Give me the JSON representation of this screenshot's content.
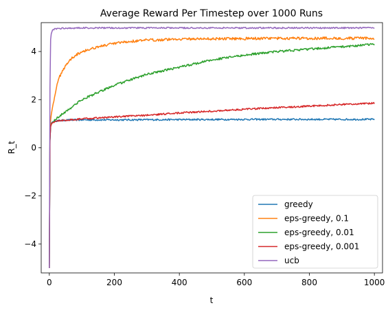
{
  "chart_data": {
    "type": "line",
    "title": "Average Reward Per Timestep over 1000 Runs",
    "xlabel": "t",
    "ylabel": "R_t",
    "xlim": [
      -25,
      1025
    ],
    "ylim": [
      -5.2,
      5.2
    ],
    "xticks": [
      0,
      200,
      400,
      600,
      800,
      1000
    ],
    "yticks": [
      -4,
      -2,
      0,
      2,
      4
    ],
    "ytick_labels": [
      "−4",
      "−2",
      "0",
      "2",
      "4"
    ],
    "grid": false,
    "legend": "lower-right",
    "series": [
      {
        "name": "greedy",
        "color": "#1f77b4",
        "points": [
          [
            0,
            -5.0
          ],
          [
            1,
            -1.5
          ],
          [
            2,
            0.3
          ],
          [
            3,
            0.8
          ],
          [
            5,
            1.0
          ],
          [
            10,
            1.08
          ],
          [
            20,
            1.12
          ],
          [
            50,
            1.15
          ],
          [
            100,
            1.16
          ],
          [
            200,
            1.16
          ],
          [
            400,
            1.17
          ],
          [
            600,
            1.18
          ],
          [
            800,
            1.18
          ],
          [
            1000,
            1.18
          ]
        ],
        "noise": 0.035
      },
      {
        "name": "eps-greedy, 0.1",
        "color": "#ff7f0e",
        "points": [
          [
            0,
            -5.0
          ],
          [
            1,
            -1.2
          ],
          [
            2,
            0.5
          ],
          [
            3,
            1.0
          ],
          [
            5,
            1.3
          ],
          [
            10,
            1.7
          ],
          [
            20,
            2.4
          ],
          [
            30,
            2.9
          ],
          [
            40,
            3.2
          ],
          [
            60,
            3.6
          ],
          [
            80,
            3.85
          ],
          [
            100,
            4.0
          ],
          [
            150,
            4.2
          ],
          [
            200,
            4.33
          ],
          [
            250,
            4.42
          ],
          [
            300,
            4.47
          ],
          [
            400,
            4.52
          ],
          [
            500,
            4.53
          ],
          [
            600,
            4.54
          ],
          [
            800,
            4.55
          ],
          [
            1000,
            4.55
          ]
        ],
        "noise": 0.055
      },
      {
        "name": "eps-greedy, 0.01",
        "color": "#2ca02c",
        "points": [
          [
            0,
            -5.0
          ],
          [
            1,
            -1.5
          ],
          [
            2,
            0.3
          ],
          [
            3,
            0.8
          ],
          [
            5,
            0.95
          ],
          [
            10,
            1.05
          ],
          [
            20,
            1.2
          ],
          [
            50,
            1.5
          ],
          [
            100,
            2.0
          ],
          [
            150,
            2.3
          ],
          [
            200,
            2.6
          ],
          [
            300,
            3.05
          ],
          [
            400,
            3.35
          ],
          [
            500,
            3.65
          ],
          [
            600,
            3.85
          ],
          [
            700,
            4.0
          ],
          [
            800,
            4.1
          ],
          [
            900,
            4.2
          ],
          [
            1000,
            4.3
          ]
        ],
        "noise": 0.045
      },
      {
        "name": "eps-greedy, 0.001",
        "color": "#d62728",
        "points": [
          [
            0,
            -5.0
          ],
          [
            1,
            -1.5
          ],
          [
            2,
            0.3
          ],
          [
            3,
            0.8
          ],
          [
            5,
            0.95
          ],
          [
            10,
            1.05
          ],
          [
            20,
            1.1
          ],
          [
            50,
            1.15
          ],
          [
            100,
            1.2
          ],
          [
            200,
            1.28
          ],
          [
            300,
            1.35
          ],
          [
            400,
            1.45
          ],
          [
            500,
            1.52
          ],
          [
            600,
            1.6
          ],
          [
            700,
            1.67
          ],
          [
            800,
            1.73
          ],
          [
            900,
            1.8
          ],
          [
            1000,
            1.85
          ]
        ],
        "noise": 0.035
      },
      {
        "name": "ucb",
        "color": "#9467bd",
        "points": [
          [
            0,
            -5.0
          ],
          [
            1,
            -0.5
          ],
          [
            2,
            2.5
          ],
          [
            3,
            4.0
          ],
          [
            4,
            4.5
          ],
          [
            5,
            4.7
          ],
          [
            10,
            4.9
          ],
          [
            20,
            4.95
          ],
          [
            50,
            4.97
          ],
          [
            100,
            4.98
          ],
          [
            1000,
            4.98
          ]
        ],
        "noise": 0.03
      }
    ]
  }
}
